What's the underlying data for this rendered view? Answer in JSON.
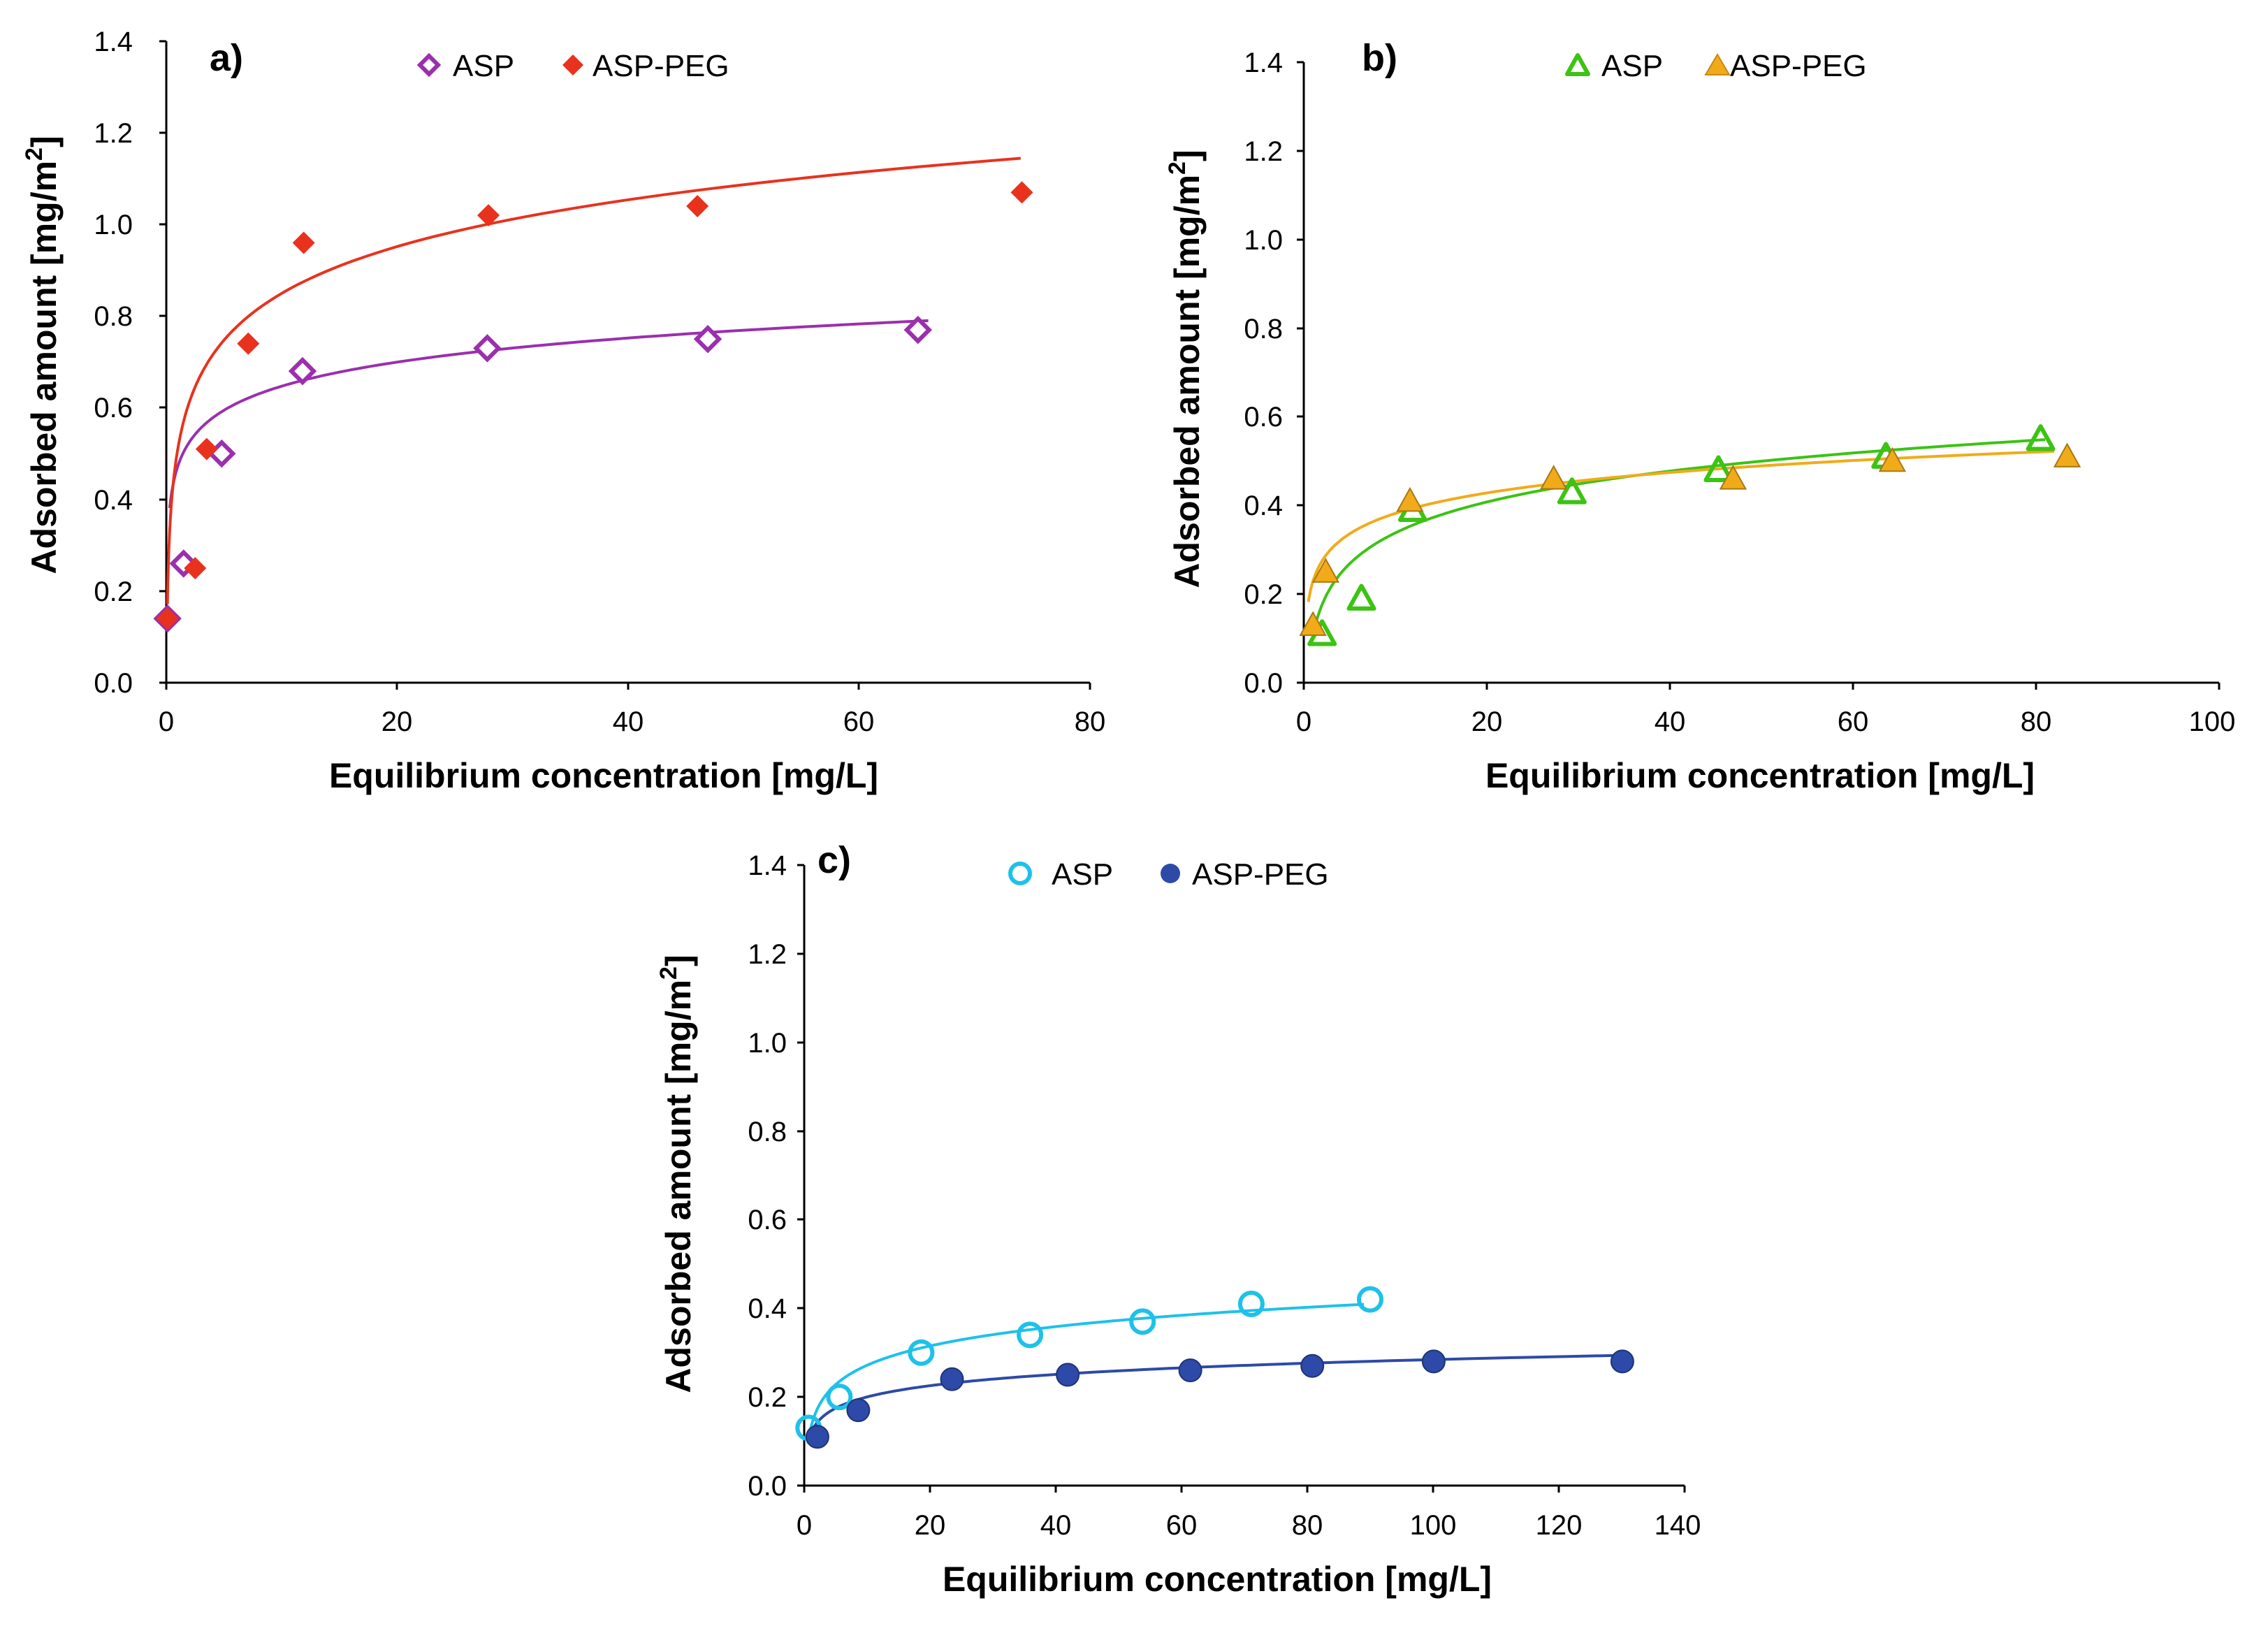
{
  "chart_data": [
    {
      "type": "scatter",
      "panel_label": "a)",
      "xlabel": "Equilibrium concentration [mg/L]",
      "ylabel": "Adsorbed amount [mg/m",
      "ylabel_sup": "2",
      "ylabel_end": "]",
      "xlim": [
        0,
        80
      ],
      "ylim": [
        0,
        1.4
      ],
      "xticks": [
        "0",
        "20",
        "40",
        "60",
        "80"
      ],
      "yticks": [
        "0.0",
        "0.2",
        "0.4",
        "0.6",
        "0.8",
        "1.0",
        "1.2",
        "1.4"
      ],
      "legend_placement": "top-center",
      "series": [
        {
          "name": "ASP",
          "marker": "diamond-open",
          "color": "#9b2fae",
          "x": [
            0.1,
            1.5,
            4.8,
            11.8,
            27.8,
            46.9,
            65.1
          ],
          "y": [
            0.14,
            0.26,
            0.5,
            0.68,
            0.73,
            0.75,
            0.77
          ],
          "fit": {
            "a": 0.4726,
            "b": 0.0758,
            "x": [
              0.3,
              66
            ]
          }
        },
        {
          "name": "ASP-PEG",
          "marker": "diamond-filled",
          "color": "#e8321e",
          "x": [
            0.1,
            2.5,
            3.5,
            7.1,
            11.9,
            27.9,
            46.0,
            74.1
          ],
          "y": [
            0.14,
            0.25,
            0.51,
            0.74,
            0.96,
            1.02,
            1.04,
            1.07
          ],
          "fit": {
            "a": 0.5106,
            "b": 0.1473,
            "x": [
              0.1,
              74
            ]
          }
        }
      ]
    },
    {
      "type": "scatter",
      "panel_label": "b)",
      "xlabel": "Equilibrium concentration [mg/L]",
      "ylabel": "Adsorbed amount [mg/m",
      "ylabel_sup": "2",
      "ylabel_end": "]",
      "xlim": [
        0,
        100
      ],
      "ylim": [
        0,
        1.4
      ],
      "xticks": [
        "0",
        "20",
        "40",
        "60",
        "80",
        "100"
      ],
      "yticks": [
        "0.0",
        "0.2",
        "0.4",
        "0.6",
        "0.8",
        "1.0",
        "1.2",
        "1.4"
      ],
      "legend_placement": "top-center",
      "series": [
        {
          "name": "ASP",
          "marker": "triangle-open",
          "color": "#3cc314",
          "x": [
            2.0,
            6.3,
            11.9,
            29.3,
            45.3,
            63.6,
            80.5
          ],
          "y": [
            0.11,
            0.19,
            0.39,
            0.43,
            0.48,
            0.51,
            0.55
          ],
          "fit": {
            "a": 0.1063,
            "b": 0.1006,
            "x": [
              1.0,
              81
            ]
          }
        },
        {
          "name": "ASP-PEG",
          "marker": "triangle-filled",
          "color": "#f1ab1a",
          "x": [
            1.0,
            2.4,
            11.6,
            27.3,
            46.9,
            64.3,
            83.4
          ],
          "y": [
            0.13,
            0.25,
            0.41,
            0.46,
            0.46,
            0.5,
            0.51
          ],
          "fit": {
            "a": 0.2286,
            "b": 0.0666,
            "x": [
              0.5,
              82
            ]
          }
        }
      ]
    },
    {
      "type": "scatter",
      "panel_label": "c)",
      "xlabel": "Equilibrium concentration [mg/L]",
      "ylabel": "Adsorbed amount [mg/m",
      "ylabel_sup": "2",
      "ylabel_end": "]",
      "xlim": [
        0,
        140
      ],
      "ylim": [
        0,
        1.4
      ],
      "xticks": [
        "0",
        "20",
        "40",
        "60",
        "80",
        "100",
        "120",
        "140"
      ],
      "yticks": [
        "0.0",
        "0.2",
        "0.4",
        "0.6",
        "0.8",
        "1.0",
        "1.2",
        "1.4"
      ],
      "legend_placement": "top-center",
      "series": [
        {
          "name": "ASP",
          "marker": "circle-open",
          "color": "#1ec1ea",
          "x": [
            0.7,
            5.6,
            18.6,
            35.9,
            53.8,
            71.1,
            90.0
          ],
          "y": [
            0.13,
            0.2,
            0.3,
            0.34,
            0.37,
            0.41,
            0.42
          ],
          "fit": {
            "a": 0.1266,
            "b": 0.0629,
            "x": [
              0.6,
              89
            ]
          }
        },
        {
          "name": "ASP-PEG",
          "marker": "circle-filled",
          "color": "#2d4aa8",
          "x": [
            2.1,
            8.6,
            23.5,
            41.9,
            61.4,
            80.8,
            100.1,
            130.1
          ],
          "y": [
            0.11,
            0.17,
            0.24,
            0.25,
            0.26,
            0.27,
            0.28,
            0.28
          ],
          "fit": {
            "a": 0.1157,
            "b": 0.0366,
            "x": [
              0.6,
              130
            ]
          }
        }
      ]
    }
  ]
}
